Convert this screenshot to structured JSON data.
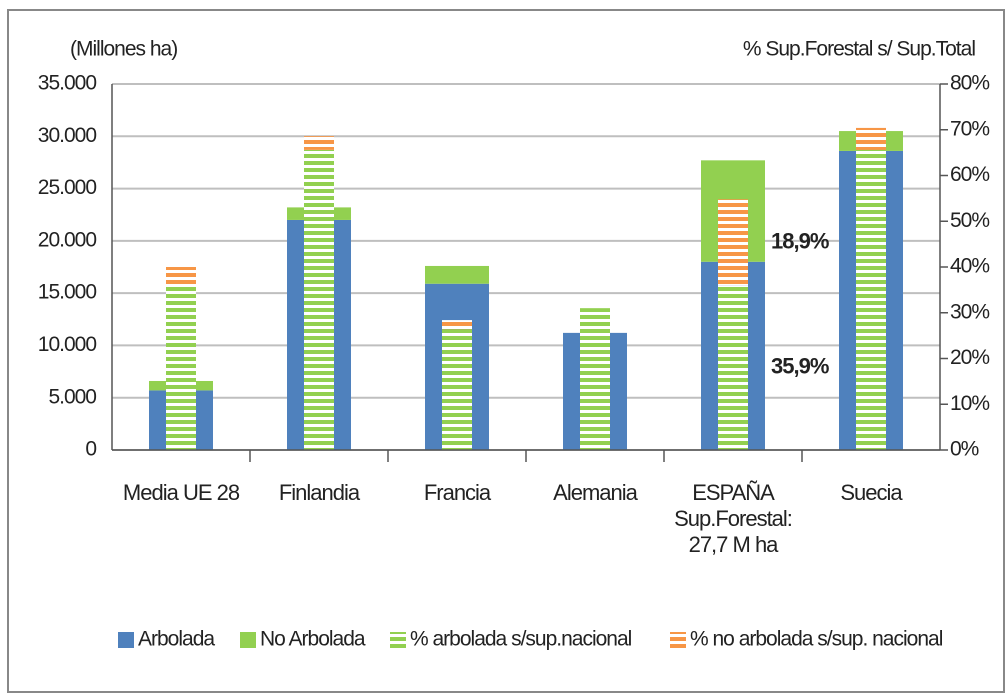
{
  "chart_data": {
    "type": "bar",
    "y_label": "(Millones ha)",
    "y2_label": "% Sup.Forestal s/ Sup.Total",
    "categories": [
      "Media UE 28",
      "Finlandia",
      "Francia",
      "Alemania",
      "ESPAÑA\nSup.Forestal:\n27,7 M ha",
      "Suecia"
    ],
    "series": [
      {
        "name": "Arbolada",
        "color": "#4f81bd",
        "values": [
          5700,
          22000,
          15900,
          11200,
          18000,
          28600
        ]
      },
      {
        "name": "No Arbolada",
        "color": "#92d050",
        "values": [
          900,
          1200,
          1700,
          0,
          9700,
          1900
        ]
      },
      {
        "name": "% arbolada s/sup.nacional",
        "color": "#92d050",
        "axis": "y2",
        "values": [
          36,
          65.6,
          26.4,
          31,
          35.9,
          65.6
        ],
        "value_labels": [
          null,
          null,
          null,
          null,
          "35,9%",
          null
        ]
      },
      {
        "name": "% no arbolada s/sup. nacional",
        "color": "#f79646",
        "axis": "y2",
        "values": [
          4,
          3,
          2,
          0,
          18.9,
          4.8
        ],
        "value_labels": [
          null,
          null,
          null,
          null,
          "18,9%",
          null
        ]
      }
    ],
    "ylim": [
      0,
      35000
    ],
    "yticks": [
      0,
      {
        "value": 5000,
        "label": "5.000"
      },
      {
        "value": 10000,
        "label": "10.000"
      },
      {
        "value": 15000,
        "label": "15.000"
      },
      {
        "value": 20000,
        "label": "20.000"
      },
      {
        "value": 25000,
        "label": "25.000"
      },
      {
        "value": 30000,
        "label": "30.000"
      },
      {
        "value": 35000,
        "label": "35.000"
      }
    ],
    "y2lim": [
      0,
      80
    ],
    "y2ticks": [
      {
        "value": 0,
        "label": "0%"
      },
      {
        "value": 10,
        "label": "10%"
      },
      {
        "value": 20,
        "label": "20%"
      },
      {
        "value": 30,
        "label": "30%"
      },
      {
        "value": 40,
        "label": "40%"
      },
      {
        "value": 50,
        "label": "50%"
      },
      {
        "value": 60,
        "label": "60%"
      },
      {
        "value": 70,
        "label": "70%"
      },
      {
        "value": 80,
        "label": "80%"
      }
    ],
    "grid": true,
    "legend": "bottom"
  }
}
